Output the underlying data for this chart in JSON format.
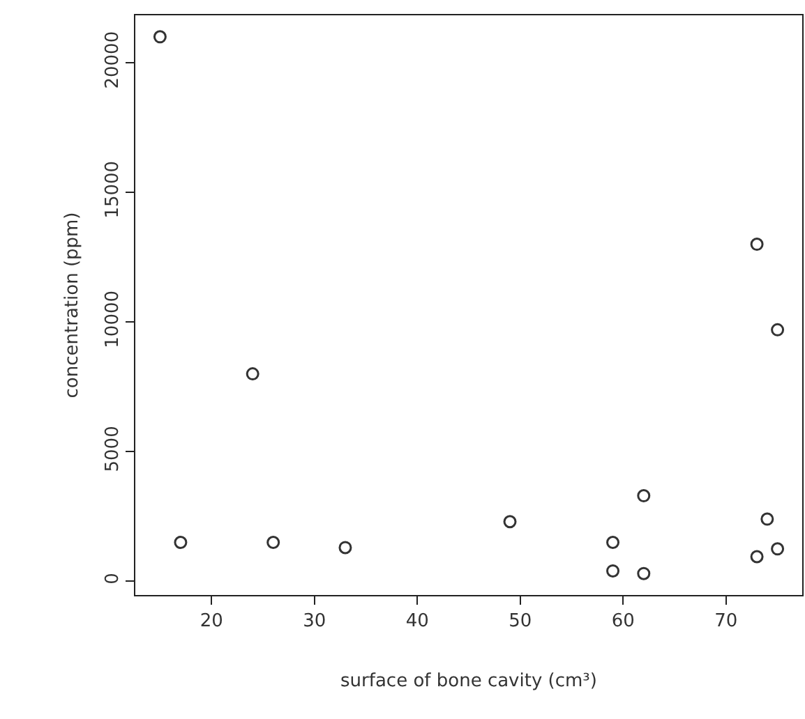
{
  "chart_data": {
    "type": "scatter",
    "xlabel": "surface of bone cavity (cm³)",
    "ylabel": "concentration (ppm)",
    "x": [
      15,
      24,
      17,
      26,
      33,
      49,
      59,
      59,
      62,
      62,
      73,
      73,
      74,
      75,
      75
    ],
    "values": [
      21000,
      8000,
      1500,
      1500,
      1300,
      2300,
      1500,
      400,
      3300,
      300,
      13000,
      950,
      2400,
      9700,
      1250
    ],
    "color": "#333333",
    "marker": "circle",
    "xlim": [
      12.6,
      77.4
    ],
    "xticks": [
      20,
      30,
      40,
      50,
      60,
      70
    ],
    "ylim": [
      -528,
      21828
    ],
    "yticks": [
      0,
      5000,
      10000,
      15000,
      20000
    ]
  }
}
